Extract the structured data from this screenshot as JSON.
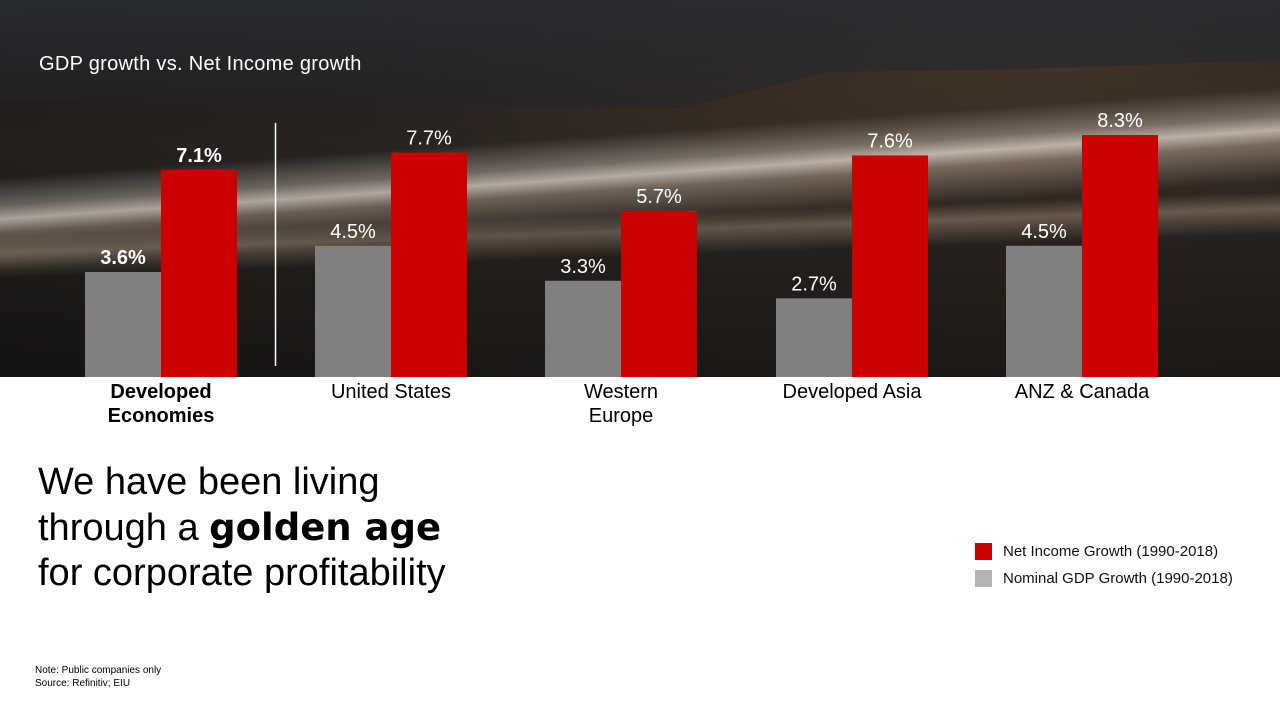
{
  "chart_title": "GDP growth vs. Net Income growth",
  "colors": {
    "net_income": "#cc0000",
    "gdp_chart": "#808080",
    "gdp_legend": "#b3b3b3",
    "divider": "#ffffff",
    "label_text": "#ffffff"
  },
  "chart_data": {
    "type": "bar",
    "title": "GDP growth vs. Net Income growth",
    "categories": [
      "Developed\nEconomies",
      "United States",
      "Western\nEurope",
      "Developed Asia",
      "ANZ & Canada"
    ],
    "series": [
      {
        "name": "Nominal GDP Growth (1990-2018)",
        "values": [
          3.6,
          4.5,
          3.3,
          2.7,
          4.5
        ],
        "labels": [
          "3.6%",
          "4.5%",
          "3.3%",
          "2.7%",
          "4.5%"
        ]
      },
      {
        "name": "Net Income Growth (1990-2018)",
        "values": [
          7.1,
          7.7,
          5.7,
          7.6,
          8.3
        ],
        "labels": [
          "7.1%",
          "7.7%",
          "5.7%",
          "7.6%",
          "8.3%"
        ]
      }
    ],
    "ylim": [
      0,
      8.6
    ],
    "data_labels": true,
    "grid": false,
    "legend_position": "bottom-right",
    "highlighted_category": "Developed\nEconomies"
  },
  "headline": {
    "line1": "We have been living",
    "line2_prefix": "through a ",
    "line2_bold": "golden age",
    "line3": "for corporate profitability"
  },
  "legend": [
    {
      "label": "Net Income Growth (1990-2018)",
      "color": "#cc0000"
    },
    {
      "label": "Nominal GDP Growth (1990-2018)",
      "color": "#b3b3b3"
    }
  ],
  "footnote": {
    "note": "Note: Public companies only",
    "source": "Source: Refinitiv; EIU"
  }
}
